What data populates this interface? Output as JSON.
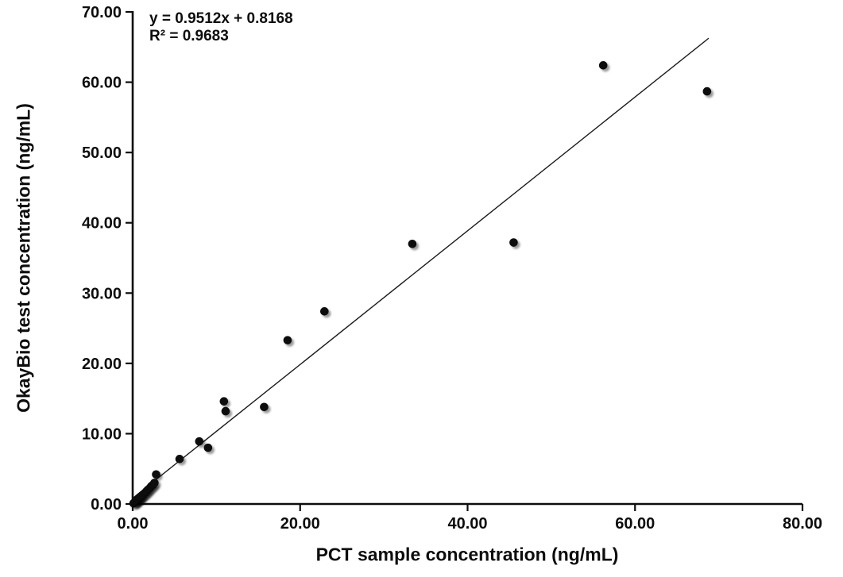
{
  "chart_data": {
    "type": "scatter",
    "title": "",
    "xlabel": "PCT sample concentration (ng/mL)",
    "ylabel": "OkayBio test concentration (ng/mL)",
    "xlim": [
      0,
      80
    ],
    "ylim": [
      0,
      70
    ],
    "grid": false,
    "legend_position": "none",
    "x_ticks": [
      {
        "value": 0,
        "label": "0.00"
      },
      {
        "value": 20,
        "label": "20.00"
      },
      {
        "value": 40,
        "label": "40.00"
      },
      {
        "value": 60,
        "label": "60.00"
      },
      {
        "value": 80,
        "label": "80.00"
      }
    ],
    "y_ticks": [
      {
        "value": 0,
        "label": "0.00"
      },
      {
        "value": 10,
        "label": "10.00"
      },
      {
        "value": 20,
        "label": "20.00"
      },
      {
        "value": 30,
        "label": "30.00"
      },
      {
        "value": 40,
        "label": "40.00"
      },
      {
        "value": 50,
        "label": "50.00"
      },
      {
        "value": 60,
        "label": "60.00"
      },
      {
        "value": 70,
        "label": "70.00"
      }
    ],
    "marker": {
      "shape": "circle",
      "color": "#0a0a0a",
      "radius_px": 5.3,
      "shadow": true
    },
    "trendline": {
      "slope": 0.9512,
      "intercept": 0.8168,
      "x_start": 0,
      "x_end": 68.8,
      "color": "#1a1a1a"
    },
    "annotations": {
      "equation": "y = 0.9512x + 0.8168",
      "r_squared": "R² = 0.9683"
    },
    "points": [
      [
        0.1,
        0.1
      ],
      [
        0.2,
        0.2
      ],
      [
        0.3,
        0.3
      ],
      [
        0.4,
        0.4
      ],
      [
        0.5,
        0.5
      ],
      [
        0.6,
        0.65
      ],
      [
        0.7,
        0.75
      ],
      [
        0.8,
        0.9
      ],
      [
        0.9,
        1.0
      ],
      [
        1.0,
        1.1
      ],
      [
        1.15,
        1.25
      ],
      [
        1.3,
        1.4
      ],
      [
        1.5,
        1.6
      ],
      [
        1.65,
        1.8
      ],
      [
        1.8,
        2.0
      ],
      [
        2.0,
        2.2
      ],
      [
        2.2,
        2.5
      ],
      [
        2.4,
        2.7
      ],
      [
        2.6,
        3.0
      ],
      [
        2.8,
        4.2
      ],
      [
        5.6,
        6.4
      ],
      [
        7.95,
        8.9
      ],
      [
        9.0,
        8.0
      ],
      [
        10.9,
        14.6
      ],
      [
        11.1,
        13.2
      ],
      [
        15.7,
        13.8
      ],
      [
        18.5,
        23.3
      ],
      [
        22.9,
        27.4
      ],
      [
        33.4,
        37.0
      ],
      [
        45.5,
        37.2
      ],
      [
        56.2,
        62.4
      ],
      [
        68.6,
        58.7
      ]
    ]
  },
  "colors": {
    "background": "#ffffff",
    "axis": "#0d0d0d",
    "text": "#0d0d0d"
  }
}
